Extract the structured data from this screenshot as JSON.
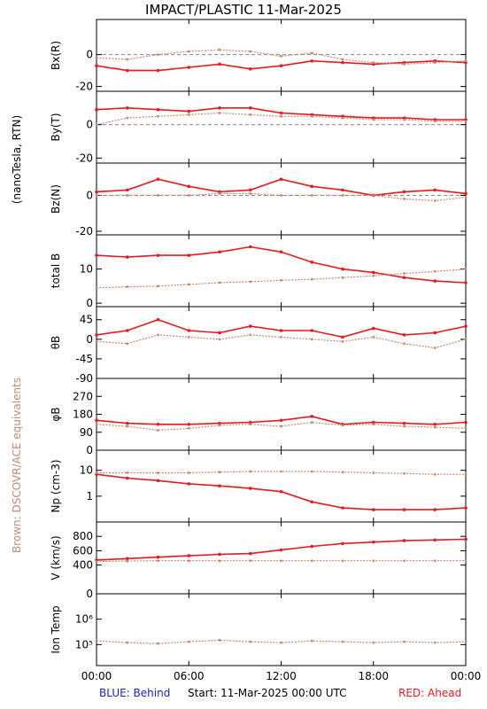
{
  "header": {
    "title": "IMPACT/PLASTIC   11-Mar-2025"
  },
  "side_labels": {
    "units": "(nanoTesla, RTN)",
    "brown_note": "Brown: DSCOVR/ACE equivalents"
  },
  "footer": {
    "behind_label": "BLUE: Behind",
    "start_label": "Start: 11-Mar-2025 00:00 UTC",
    "ahead_label": "RED: Ahead"
  },
  "colors": {
    "ahead": "#e8191f",
    "dscovr": "#c48a72",
    "behind": "#1e22c8",
    "zero_line": "#888888",
    "frame": "#000000"
  },
  "chart_data": [
    {
      "type": "scatter",
      "ylabel": "Bx(R)",
      "yticks": [
        0,
        -20
      ],
      "ylim": [
        -23,
        22
      ],
      "zero_line": true,
      "x": [
        0,
        2,
        4,
        6,
        8,
        10,
        12,
        14,
        16,
        18,
        20,
        22,
        24
      ],
      "series": [
        {
          "name": "Ahead",
          "values": [
            -7,
            -10,
            -10,
            -8,
            -6,
            -9,
            -7,
            -4,
            -5,
            -6,
            -5,
            -4,
            -5
          ]
        },
        {
          "name": "DSCOVR/ACE equivalents",
          "values": [
            -2,
            -3,
            0,
            2,
            3,
            2,
            -1,
            1,
            -3,
            -5,
            -6,
            -5,
            -4
          ]
        }
      ]
    },
    {
      "type": "scatter",
      "ylabel": "By(T)",
      "yticks": [
        0,
        -20
      ],
      "ylim": [
        -23,
        20
      ],
      "zero_line": true,
      "x": [
        0,
        2,
        4,
        6,
        8,
        10,
        12,
        14,
        16,
        18,
        20,
        22,
        24
      ],
      "series": [
        {
          "name": "Ahead",
          "values": [
            9,
            10,
            9,
            8,
            10,
            10,
            7,
            6,
            5,
            4,
            4,
            3,
            3
          ]
        },
        {
          "name": "DSCOVR/ACE equivalents",
          "values": [
            0,
            4,
            5,
            6,
            7,
            6,
            5,
            5,
            4,
            3,
            3,
            2,
            2
          ]
        }
      ]
    },
    {
      "type": "scatter",
      "ylabel": "Bz(N)",
      "yticks": [
        0,
        -20
      ],
      "ylim": [
        -22,
        18
      ],
      "zero_line": true,
      "x": [
        0,
        2,
        4,
        6,
        8,
        10,
        12,
        14,
        16,
        18,
        20,
        22,
        24
      ],
      "series": [
        {
          "name": "Ahead",
          "values": [
            2,
            3,
            9,
            5,
            2,
            3,
            9,
            5,
            3,
            0,
            2,
            3,
            1
          ]
        },
        {
          "name": "DSCOVR/ACE equivalents",
          "values": [
            0,
            0,
            0,
            0,
            1,
            1,
            0,
            0,
            0,
            0,
            -2,
            -3,
            -1
          ]
        }
      ]
    },
    {
      "type": "scatter",
      "ylabel": "total B",
      "yticks": [
        0,
        10
      ],
      "ylim": [
        -1,
        20
      ],
      "zero_line": false,
      "x": [
        0,
        2,
        4,
        6,
        8,
        10,
        12,
        14,
        16,
        18,
        20,
        22,
        24
      ],
      "series": [
        {
          "name": "Ahead",
          "values": [
            14,
            13.5,
            14,
            14,
            15,
            16.5,
            15,
            12,
            10,
            9,
            7.5,
            6.5,
            6
          ]
        },
        {
          "name": "DSCOVR/ACE equivalents",
          "values": [
            4.5,
            4.8,
            5,
            5.5,
            6,
            6.3,
            6.7,
            7,
            7.5,
            8,
            8.7,
            9.3,
            10
          ]
        }
      ]
    },
    {
      "type": "scatter",
      "ylabel": "θB",
      "yticks": [
        45,
        0,
        -45,
        -90
      ],
      "ylim": [
        -90,
        75
      ],
      "zero_line": false,
      "x": [
        0,
        2,
        4,
        6,
        8,
        10,
        12,
        14,
        16,
        18,
        20,
        22,
        24
      ],
      "series": [
        {
          "name": "Ahead",
          "values": [
            10,
            20,
            45,
            20,
            15,
            30,
            20,
            20,
            5,
            25,
            10,
            15,
            30
          ]
        },
        {
          "name": "DSCOVR/ACE equivalents",
          "values": [
            -5,
            -10,
            10,
            5,
            0,
            10,
            5,
            0,
            -5,
            5,
            -10,
            -20,
            0
          ]
        }
      ]
    },
    {
      "type": "scatter",
      "ylabel": "φB",
      "yticks": [
        270,
        180,
        90,
        0
      ],
      "ylim": [
        0,
        360
      ],
      "zero_line": false,
      "x": [
        0,
        2,
        4,
        6,
        8,
        10,
        12,
        14,
        16,
        18,
        20,
        22,
        24
      ],
      "series": [
        {
          "name": "Ahead",
          "values": [
            150,
            135,
            130,
            130,
            135,
            140,
            150,
            170,
            130,
            140,
            135,
            130,
            140
          ]
        },
        {
          "name": "DSCOVR/ACE equivalents",
          "values": [
            130,
            120,
            100,
            110,
            125,
            130,
            120,
            140,
            125,
            130,
            120,
            115,
            110
          ]
        }
      ]
    },
    {
      "type": "scatter",
      "ylabel": "Np (cm-3)",
      "yticks": [
        10,
        1
      ],
      "yscale": "log",
      "ylim": [
        0.1,
        60
      ],
      "zero_line": false,
      "x": [
        0,
        2,
        4,
        6,
        8,
        10,
        12,
        14,
        16,
        18,
        20,
        22,
        24
      ],
      "series": [
        {
          "name": "Ahead",
          "values": [
            7,
            5,
            4,
            3,
            2.5,
            2,
            1.5,
            0.6,
            0.35,
            0.3,
            0.3,
            0.3,
            0.35
          ]
        },
        {
          "name": "DSCOVR/ACE equivalents",
          "values": [
            8,
            8,
            8,
            8,
            8.5,
            9,
            9,
            9,
            8.5,
            8,
            7.5,
            7,
            7
          ]
        }
      ]
    },
    {
      "type": "scatter",
      "ylabel": "V (km/s)",
      "yticks": [
        800,
        600,
        400,
        0
      ],
      "ylim": [
        0,
        1000
      ],
      "zero_line": false,
      "x": [
        0,
        2,
        4,
        6,
        8,
        10,
        12,
        14,
        16,
        18,
        20,
        22,
        24
      ],
      "series": [
        {
          "name": "Ahead",
          "values": [
            470,
            490,
            510,
            530,
            550,
            560,
            610,
            660,
            700,
            720,
            740,
            750,
            760
          ]
        },
        {
          "name": "DSCOVR/ACE equivalents",
          "values": [
            450,
            455,
            460,
            460,
            460,
            460,
            460,
            460,
            460,
            460,
            460,
            460,
            460
          ]
        }
      ]
    },
    {
      "type": "scatter",
      "ylabel": "Ion Temp",
      "yticks": [
        "10⁶",
        "10⁵"
      ],
      "ytick_values": [
        1000000,
        100000
      ],
      "yscale": "log",
      "ylim": [
        15000,
        10000000
      ],
      "zero_line": false,
      "x": [
        0,
        2,
        4,
        6,
        8,
        10,
        12,
        14,
        16,
        18,
        20,
        22,
        24
      ],
      "series": [
        {
          "name": "DSCOVR/ACE equivalents",
          "values": [
            140000,
            120000,
            110000,
            130000,
            150000,
            130000,
            120000,
            140000,
            130000,
            120000,
            130000,
            120000,
            130000
          ]
        }
      ]
    }
  ],
  "xaxis": {
    "ticks": [
      "00:00",
      "06:00",
      "12:00",
      "18:00",
      "00:00"
    ],
    "tick_hours": [
      0,
      6,
      12,
      18,
      24
    ]
  }
}
